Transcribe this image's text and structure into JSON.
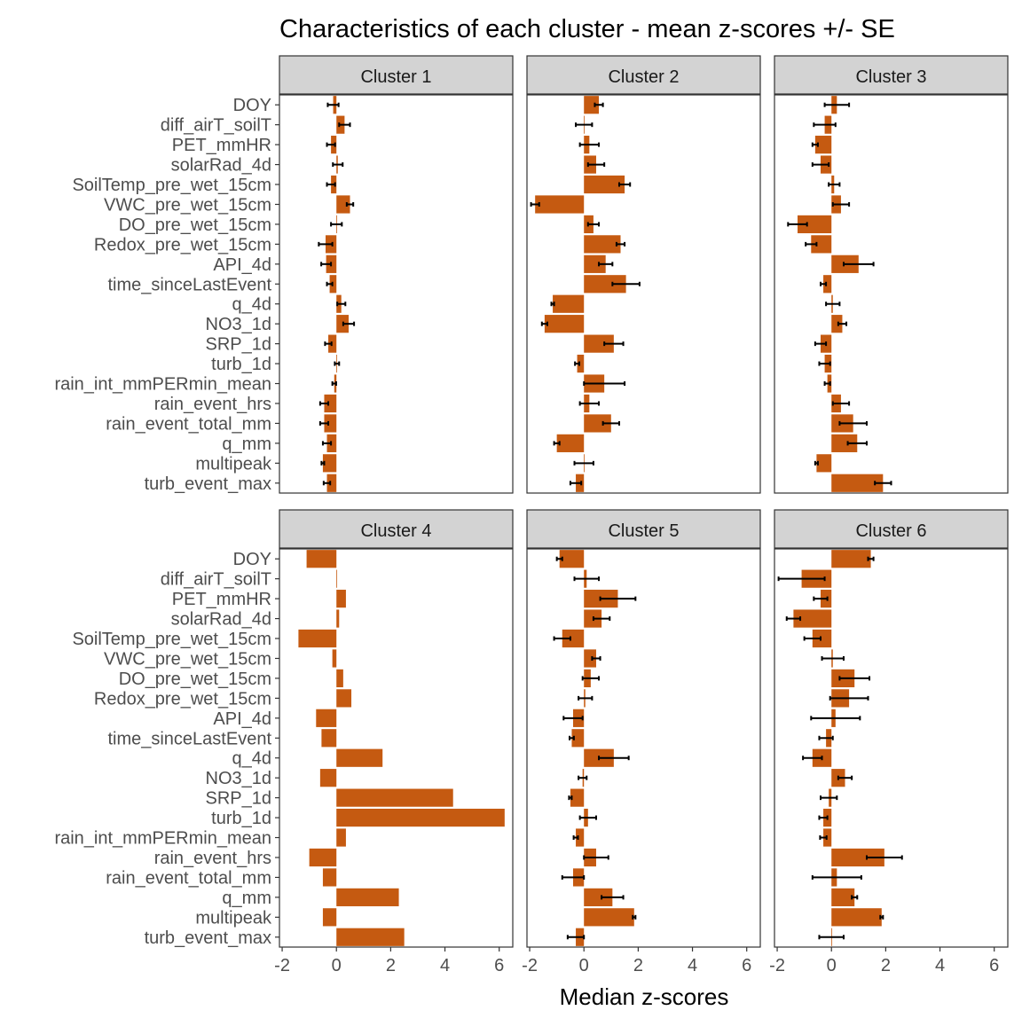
{
  "chart_data": {
    "type": "bar",
    "orientation": "horizontal",
    "title": "Characteristics of each cluster - mean z-scores +/- SE",
    "xlabel": "Median z-scores",
    "ylabel": "",
    "xlim": [
      -2.1,
      6.5
    ],
    "xticks": [
      -2,
      0,
      2,
      4,
      6
    ],
    "grid": false,
    "bar_color": "#c55a11",
    "error_color": "#000000",
    "strip_fill": "#d3d3d3",
    "categories": [
      "DOY",
      "diff_airT_soilT",
      "PET_mmHR",
      "solarRad_4d",
      "SoilTemp_pre_wet_15cm",
      "VWC_pre_wet_15cm",
      "DO_pre_wet_15cm",
      "Redox_pre_wet_15cm",
      "API_4d",
      "time_sinceLastEvent",
      "q_4d",
      "NO3_1d",
      "SRP_1d",
      "turb_1d",
      "rain_int_mmPERmin_mean",
      "rain_event_hrs",
      "rain_event_total_mm",
      "q_mm",
      "multipeak",
      "turb_event_max"
    ],
    "panels": [
      {
        "name": "Cluster 1",
        "values": [
          -0.12,
          0.3,
          -0.2,
          0.05,
          -0.2,
          0.5,
          0.0,
          -0.4,
          -0.38,
          -0.25,
          0.18,
          0.45,
          -0.3,
          0.02,
          -0.08,
          -0.45,
          -0.45,
          -0.35,
          -0.5,
          -0.35
        ],
        "errors": [
          0.2,
          0.2,
          0.15,
          0.18,
          0.15,
          0.12,
          0.2,
          0.25,
          0.18,
          0.1,
          0.15,
          0.2,
          0.12,
          0.08,
          0.07,
          0.15,
          0.15,
          0.15,
          0.05,
          0.12
        ]
      },
      {
        "name": "Cluster 2",
        "values": [
          0.55,
          0.0,
          0.2,
          0.45,
          1.5,
          -1.8,
          0.35,
          1.35,
          0.8,
          1.55,
          -1.15,
          -1.45,
          1.1,
          -0.25,
          0.75,
          0.2,
          1.0,
          -1.0,
          0.0,
          -0.3
        ],
        "errors": [
          0.15,
          0.3,
          0.35,
          0.3,
          0.2,
          0.15,
          0.2,
          0.15,
          0.25,
          0.5,
          0.05,
          0.1,
          0.35,
          0.08,
          0.75,
          0.35,
          0.3,
          0.1,
          0.35,
          0.2
        ]
      },
      {
        "name": "Cluster 3",
        "values": [
          0.2,
          -0.25,
          -0.6,
          -0.4,
          0.1,
          0.35,
          -1.25,
          -0.75,
          1.0,
          -0.3,
          0.05,
          0.4,
          -0.4,
          -0.25,
          -0.15,
          0.35,
          0.8,
          0.95,
          -0.55,
          1.9
        ],
        "errors": [
          0.45,
          0.4,
          0.1,
          0.3,
          0.2,
          0.3,
          0.35,
          0.2,
          0.55,
          0.1,
          0.25,
          0.15,
          0.2,
          0.2,
          0.1,
          0.3,
          0.5,
          0.35,
          0.05,
          0.3
        ]
      },
      {
        "name": "Cluster 4",
        "values": [
          -1.1,
          0.0,
          0.35,
          0.1,
          -1.4,
          -0.15,
          0.25,
          0.55,
          -0.75,
          -0.55,
          1.7,
          -0.6,
          4.3,
          6.2,
          0.35,
          -1.0,
          -0.5,
          2.3,
          -0.5,
          2.5
        ],
        "errors": [
          0,
          0,
          0,
          0,
          0,
          0,
          0,
          0,
          0,
          0,
          0,
          0,
          0,
          0,
          0,
          0,
          0,
          0,
          0,
          0
        ]
      },
      {
        "name": "Cluster 5",
        "values": [
          -0.9,
          0.1,
          1.25,
          0.65,
          -0.8,
          0.45,
          0.25,
          0.05,
          -0.4,
          -0.45,
          1.1,
          -0.05,
          -0.5,
          0.15,
          -0.3,
          0.45,
          -0.4,
          1.05,
          1.85,
          -0.3
        ],
        "errors": [
          0.1,
          0.45,
          0.65,
          0.3,
          0.3,
          0.15,
          0.3,
          0.25,
          0.35,
          0.08,
          0.55,
          0.15,
          0.05,
          0.3,
          0.08,
          0.45,
          0.4,
          0.4,
          0.05,
          0.3
        ]
      },
      {
        "name": "Cluster 6",
        "values": [
          1.45,
          -1.1,
          -0.4,
          -1.4,
          -0.7,
          0.05,
          0.85,
          0.65,
          0.15,
          -0.2,
          -0.7,
          0.5,
          -0.1,
          -0.3,
          -0.3,
          1.95,
          0.2,
          0.85,
          1.85,
          0.0
        ],
        "errors": [
          0.1,
          0.85,
          0.25,
          0.25,
          0.3,
          0.4,
          0.55,
          0.7,
          0.9,
          0.25,
          0.35,
          0.25,
          0.3,
          0.15,
          0.12,
          0.65,
          0.9,
          0.1,
          0.05,
          0.45
        ]
      }
    ]
  }
}
